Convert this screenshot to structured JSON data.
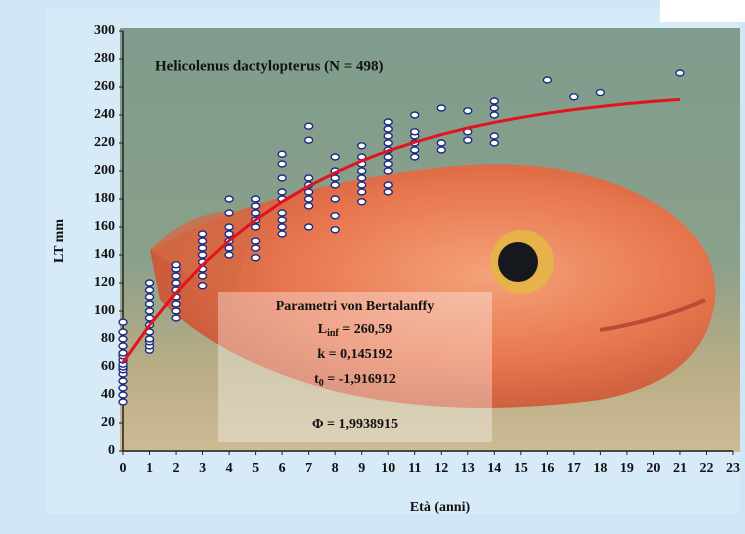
{
  "chart_data": {
    "type": "scatter",
    "title": "Helicolenus dactylopterus (N = 498)",
    "xlabel": "Età (anni)",
    "ylabel": "LT mm",
    "xlim": [
      0,
      23
    ],
    "ylim": [
      0,
      300
    ],
    "xticks": [
      0,
      1,
      2,
      3,
      4,
      5,
      6,
      7,
      8,
      9,
      10,
      11,
      12,
      13,
      14,
      15,
      16,
      17,
      18,
      19,
      20,
      21,
      22,
      23
    ],
    "yticks": [
      0,
      20,
      40,
      60,
      80,
      100,
      120,
      140,
      160,
      180,
      200,
      220,
      240,
      260,
      280,
      300
    ],
    "series": [
      {
        "type": "scatter",
        "color": "#1c2a80",
        "x": [
          0,
          0,
          0,
          0,
          0,
          0,
          0,
          0,
          0,
          0,
          0,
          0,
          0,
          0,
          0,
          1,
          1,
          1,
          1,
          1,
          1,
          1,
          1,
          1,
          1,
          1,
          1,
          2,
          2,
          2,
          2,
          2,
          2,
          2,
          2,
          2,
          3,
          3,
          3,
          3,
          3,
          3,
          3,
          3,
          4,
          4,
          4,
          4,
          4,
          4,
          4,
          5,
          5,
          5,
          5,
          5,
          5,
          5,
          5,
          6,
          6,
          6,
          6,
          6,
          6,
          6,
          6,
          6,
          7,
          7,
          7,
          7,
          7,
          7,
          7,
          7,
          8,
          8,
          8,
          8,
          8,
          8,
          8,
          9,
          9,
          9,
          9,
          9,
          9,
          9,
          9,
          10,
          10,
          10,
          10,
          10,
          10,
          10,
          10,
          10,
          10,
          11,
          11,
          11,
          11,
          11,
          11,
          12,
          12,
          12,
          13,
          13,
          13,
          14,
          14,
          14,
          14,
          14,
          16,
          17,
          18,
          21
        ],
        "values": [
          35,
          40,
          45,
          50,
          55,
          58,
          60,
          62,
          65,
          68,
          70,
          75,
          80,
          85,
          92,
          72,
          75,
          78,
          80,
          85,
          90,
          95,
          100,
          105,
          110,
          115,
          120,
          95,
          100,
          105,
          110,
          115,
          120,
          125,
          130,
          133,
          118,
          125,
          130,
          135,
          140,
          145,
          150,
          155,
          140,
          145,
          150,
          155,
          160,
          170,
          180,
          138,
          145,
          150,
          160,
          165,
          170,
          175,
          180,
          155,
          160,
          165,
          170,
          180,
          185,
          195,
          205,
          212,
          160,
          175,
          180,
          185,
          190,
          195,
          222,
          232,
          158,
          168,
          180,
          190,
          195,
          200,
          210,
          178,
          185,
          190,
          195,
          200,
          205,
          210,
          218,
          185,
          190,
          200,
          205,
          210,
          215,
          220,
          225,
          230,
          235,
          210,
          215,
          220,
          225,
          228,
          240,
          215,
          220,
          245,
          222,
          228,
          243,
          220,
          225,
          240,
          245,
          250,
          265,
          253,
          256,
          270
        ]
      },
      {
        "type": "line",
        "color": "#e0141e",
        "x": [
          0,
          1,
          2,
          3,
          4,
          5,
          6,
          7,
          8,
          9,
          10,
          11,
          12,
          13,
          14,
          15,
          16,
          17,
          18,
          19,
          20,
          21
        ],
        "values": [
          63.3,
          89.9,
          113.0,
          133.0,
          150.2,
          165.1,
          178.0,
          189.2,
          198.8,
          207.2,
          214.4,
          220.6,
          226.0,
          230.7,
          234.7,
          238.2,
          241.3,
          243.9,
          246.1,
          248.1,
          249.8,
          251.2
        ]
      }
    ],
    "annotation": {
      "title": "Parametri von Bertalanffy",
      "lines": [
        {
          "base": "L",
          "sub": "inf",
          "rest": " = 260,59"
        },
        {
          "base": "k = 0,145192"
        },
        {
          "base": "t",
          "sub": "0",
          "rest": " = -1,916912"
        },
        {
          "base": "Φ = 1,9938915"
        }
      ]
    }
  }
}
